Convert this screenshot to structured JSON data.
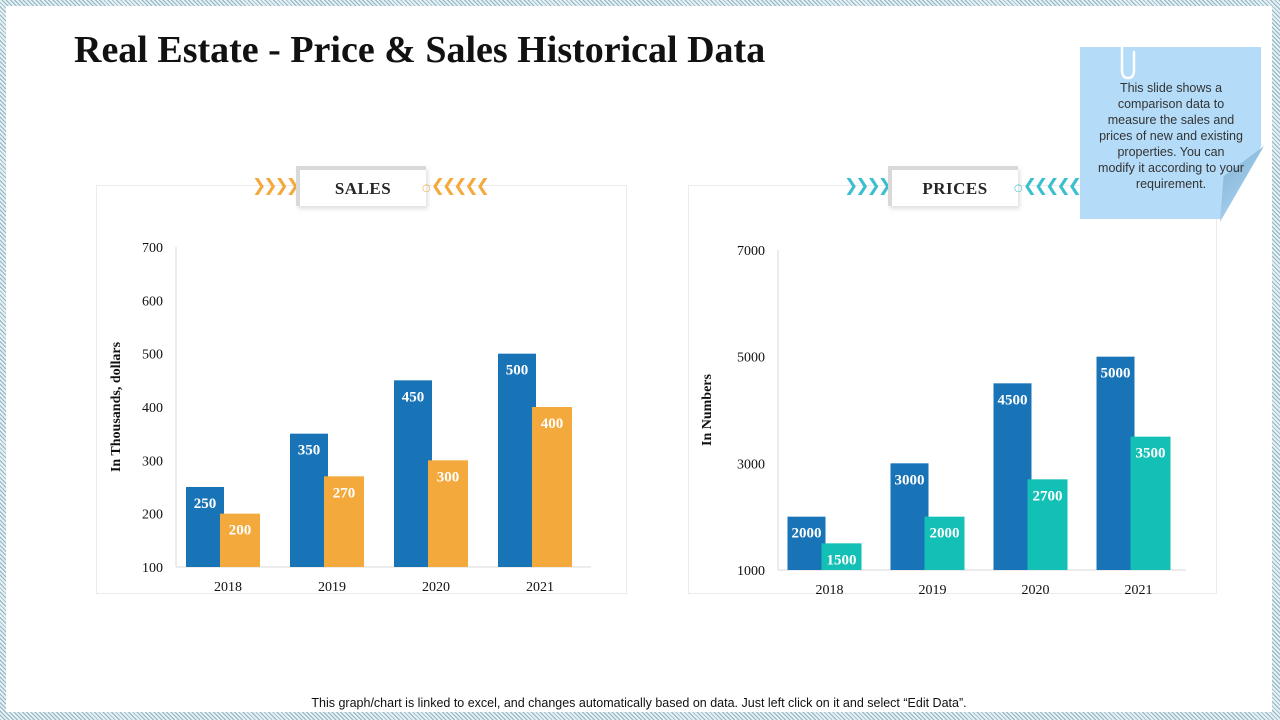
{
  "slide": {
    "title": "Real Estate - Price & Sales Historical Data",
    "note": "This slide shows a comparison data to measure the sales and prices of new and existing properties. You can modify it according to your requirement.",
    "footer": "This graph/chart is linked to excel, and changes automatically based on data. Just left click on it and select “Edit Data”."
  },
  "colors": {
    "blue": "#1874b7",
    "orange": "#f4a93c",
    "teal": "#13c0b6",
    "note_bg": "#b4dcf8",
    "tab_arrow_orange": "#f4a93c",
    "tab_arrow_teal": "#3bbfd0"
  },
  "icons": {
    "paperclip": "paperclip-icon",
    "chevrons_right": "chevrons-right-icon",
    "chevrons_left": "chevrons-left-icon"
  },
  "chart_data": [
    {
      "type": "bar",
      "title": "SALES",
      "categories": [
        "2018",
        "2019",
        "2020",
        "2021"
      ],
      "series": [
        {
          "values": [
            250,
            350,
            450,
            500
          ],
          "color": "#1874b7"
        },
        {
          "values": [
            200,
            270,
            300,
            400
          ],
          "color": "#f4a93c"
        }
      ],
      "ylabel": "In Thousands, dollars",
      "yticks": [
        100,
        200,
        300,
        400,
        500,
        600,
        700
      ],
      "ylim": [
        100,
        700
      ],
      "grid": false,
      "legend": "none"
    },
    {
      "type": "bar",
      "title": "PRICES",
      "categories": [
        "2018",
        "2019",
        "2020",
        "2021"
      ],
      "series": [
        {
          "values": [
            2000,
            3000,
            4500,
            5000
          ],
          "color": "#1874b7"
        },
        {
          "values": [
            1500,
            2000,
            2700,
            3500
          ],
          "color": "#13c0b6"
        }
      ],
      "ylabel": "In Numbers",
      "yticks": [
        1000,
        3000,
        5000,
        7000
      ],
      "ylim": [
        1000,
        7000
      ],
      "grid": false,
      "legend": "none"
    }
  ]
}
